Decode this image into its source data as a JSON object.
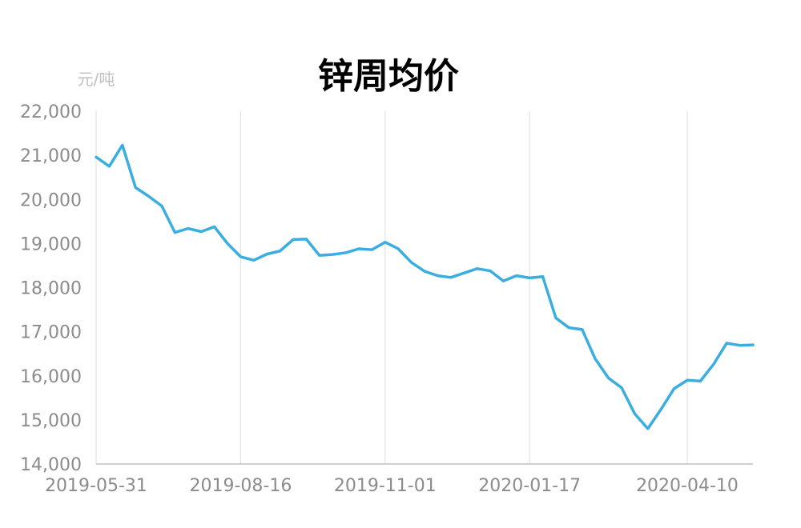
{
  "chart_data": {
    "type": "line",
    "title": "锌周均价",
    "ylabel": "元/吨",
    "xlabel": "",
    "ylim": [
      14000,
      22000
    ],
    "y_ticks": [
      14000,
      15000,
      16000,
      17000,
      18000,
      19000,
      20000,
      21000,
      22000
    ],
    "y_tick_labels": [
      "14,000",
      "15,000",
      "16,000",
      "17,000",
      "18,000",
      "19,000",
      "20,000",
      "21,000",
      "22,000"
    ],
    "x_tick_labels": [
      "2019-05-31",
      "2019-08-16",
      "2019-11-01",
      "2020-01-17",
      "2020-04-10"
    ],
    "x_tick_indices": [
      0,
      11,
      22,
      33,
      45
    ],
    "grid": "vertical",
    "legend": "none",
    "color": "#3aaee0",
    "series": [
      {
        "values": [
          20960,
          20750,
          21230,
          20270,
          20070,
          19850,
          19250,
          19340,
          19270,
          19380,
          19000,
          18700,
          18620,
          18760,
          18830,
          19090,
          19100,
          18730,
          18750,
          18790,
          18880,
          18860,
          19030,
          18880,
          18570,
          18370,
          18270,
          18230,
          18330,
          18430,
          18380,
          18150,
          18270,
          18220,
          18250,
          17310,
          17090,
          17050,
          16380,
          15950,
          15730,
          15140,
          14800,
          15240,
          15710,
          15900,
          15880,
          16260,
          16740,
          16690,
          16700
        ]
      }
    ]
  }
}
